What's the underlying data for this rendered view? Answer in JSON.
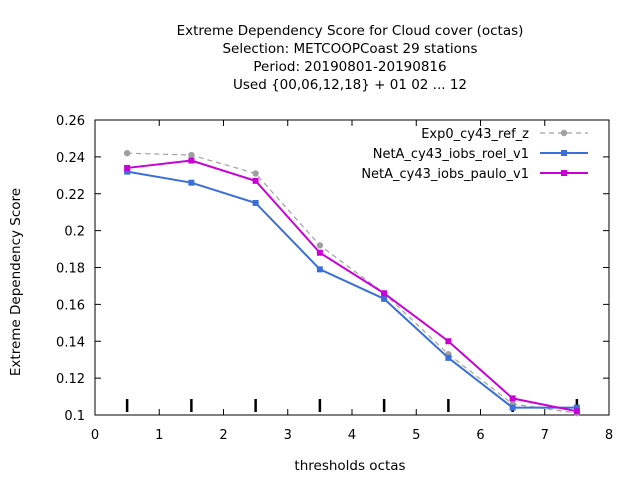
{
  "chart_data": {
    "type": "line",
    "title": [
      "Extreme Dependency Score  for Cloud cover (octas)",
      "Selection: METCOOPCoast     29 stations",
      "Period: 20190801-20190816",
      "Used {00,06,12,18} + 01 02 ... 12"
    ],
    "xlabel": "thresholds octas",
    "ylabel": "Extreme Dependency Score",
    "xlim": [
      0,
      8
    ],
    "ylim": [
      0.1,
      0.26
    ],
    "xticks": [
      "0",
      "1",
      "2",
      "3",
      "4",
      "5",
      "6",
      "7",
      "8"
    ],
    "yticks": [
      "0.1",
      "0.12",
      "0.14",
      "0.16",
      "0.18",
      "0.2",
      "0.22",
      "0.24",
      "0.26"
    ],
    "grid": false,
    "legend_position": "top-right",
    "x": [
      0.5,
      1.5,
      2.5,
      3.5,
      4.5,
      5.5,
      6.5,
      7.5
    ],
    "series": [
      {
        "name": "Exp0_cy43_ref_z",
        "color": "#a0a0a0",
        "dashed": true,
        "values": [
          0.242,
          0.241,
          0.231,
          0.192,
          0.166,
          0.133,
          0.106,
          0.101
        ]
      },
      {
        "name": "NetA_cy43_iobs_roel_v1",
        "color": "#3a6ed8",
        "dashed": false,
        "values": [
          0.232,
          0.226,
          0.215,
          0.179,
          0.163,
          0.131,
          0.104,
          0.104
        ]
      },
      {
        "name": "NetA_cy43_iobs_paulo_v1",
        "color": "#c800d6",
        "dashed": false,
        "values": [
          0.234,
          0.238,
          0.227,
          0.188,
          0.166,
          0.14,
          0.109,
          0.102
        ]
      }
    ],
    "event_markers_x": [
      0.5,
      1.5,
      2.5,
      3.5,
      4.5,
      5.5,
      6.5,
      7.5
    ]
  }
}
